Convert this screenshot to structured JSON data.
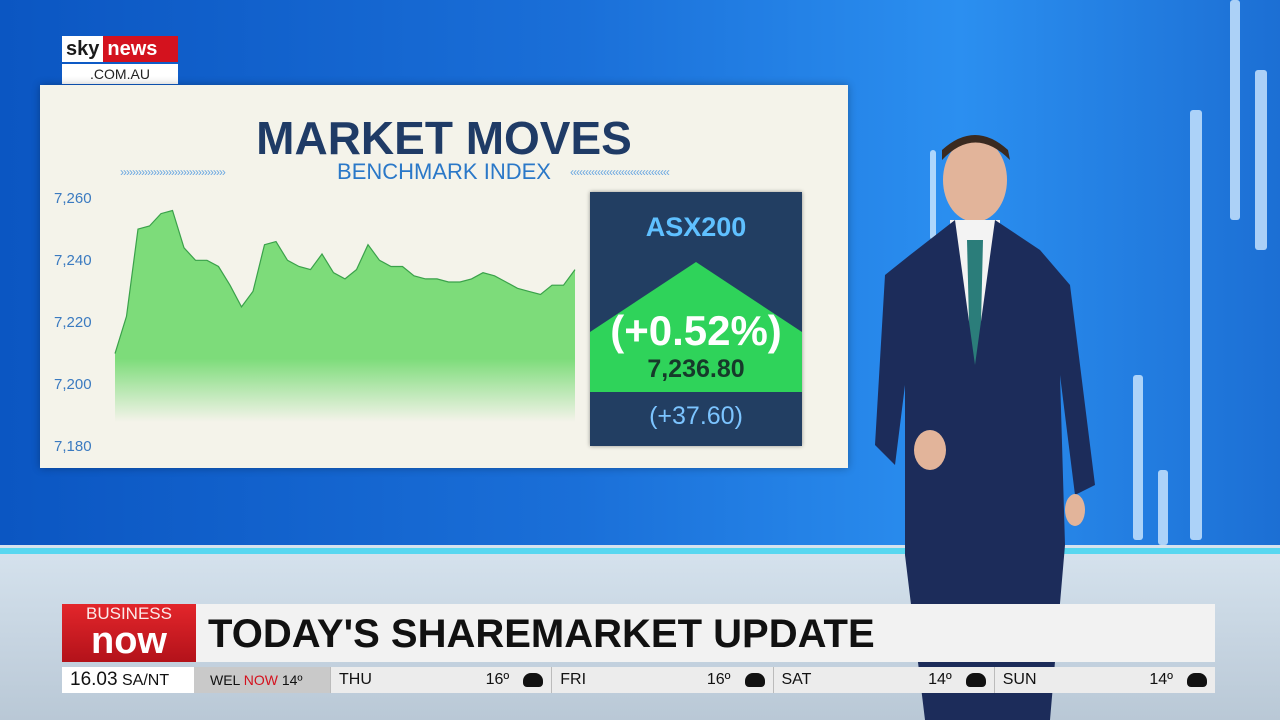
{
  "logo": {
    "brand": "sky news",
    "domain": ".COM.AU"
  },
  "board": {
    "title": "MARKET MOVES",
    "subtitle": "BENCHMARK INDEX",
    "chevrons_left": "›››››››››››››››››››››››››››››››››››",
    "chevrons_right": "‹‹‹‹‹‹‹‹‹‹‹‹‹‹‹‹‹‹‹‹‹‹‹‹‹‹‹‹‹‹‹‹‹"
  },
  "index_box": {
    "name": "ASX200",
    "percent_change": "(+0.52%)",
    "value": "7,236.80",
    "point_change": "(+37.60)",
    "up_color": "#2fd35a"
  },
  "chart_data": {
    "type": "area",
    "title": "",
    "xlabel": "",
    "ylabel": "",
    "ylim": [
      7180,
      7260
    ],
    "yticks": [
      "7,260",
      "7,240",
      "7,220",
      "7,200",
      "7,180"
    ],
    "grid": false,
    "color": "#7ddc7a",
    "values": [
      7210,
      7222,
      7250,
      7251,
      7255,
      7256,
      7244,
      7240,
      7240,
      7238,
      7232,
      7225,
      7230,
      7245,
      7246,
      7240,
      7238,
      7237,
      7242,
      7236,
      7234,
      7237,
      7245,
      7240,
      7238,
      7238,
      7235,
      7234,
      7234,
      7233,
      7233,
      7234,
      7236,
      7235,
      7233,
      7231,
      7230,
      7229,
      7232,
      7232,
      7237
    ]
  },
  "lower_third": {
    "brand_top": "BUSINESS",
    "brand_bottom": "now",
    "headline": "TODAY'S SHAREMARKET UPDATE",
    "brand_color": "#d4121e"
  },
  "ticker": {
    "time": "16.03",
    "region": "SA/NT",
    "city": "WEL",
    "now_label": "NOW",
    "now_temp": "14º",
    "forecast": [
      {
        "day": "THU",
        "temp": "16º",
        "icon": "cloud-icon"
      },
      {
        "day": "FRI",
        "temp": "16º",
        "icon": "rain-cloud-icon"
      },
      {
        "day": "SAT",
        "temp": "14º",
        "icon": "rain-cloud-icon"
      },
      {
        "day": "SUN",
        "temp": "14º",
        "icon": "rain-cloud-icon"
      }
    ]
  }
}
